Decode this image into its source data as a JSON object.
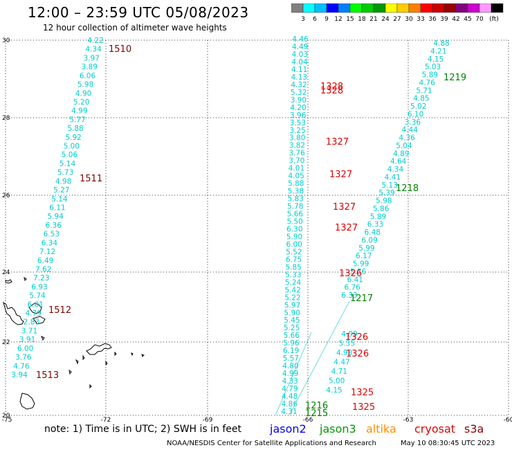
{
  "title": "12:00 – 23:59 UTC 05/08/2023",
  "subtitle": "12 hour collection of altimeter wave heights",
  "colorbar": {
    "colors": [
      "#808080",
      "#00ffff",
      "#00bfff",
      "#0000ff",
      "#0080ff",
      "#00ff00",
      "#00cc00",
      "#009900",
      "#ffff00",
      "#ffcc00",
      "#ff8000",
      "#ff0000",
      "#cc0000",
      "#990000",
      "#800080",
      "#cc00cc",
      "#ff99ff",
      "#000000"
    ],
    "labels": [
      "3",
      "6",
      "9",
      "12",
      "15",
      "18",
      "21",
      "24",
      "27",
      "30",
      "33",
      "36",
      "39",
      "42",
      "45",
      "70",
      "(ft)"
    ]
  },
  "axes": {
    "lon_labels": [
      "-75",
      "-72",
      "-69",
      "-66",
      "-63",
      "-60"
    ],
    "lat_labels": [
      "30",
      "28",
      "26",
      "24",
      "22",
      "20"
    ]
  },
  "tracks": {
    "west_values": [
      "4.22",
      "4.34",
      "3.97",
      "3.89",
      "6.06",
      "5.98",
      "4.90",
      "5.20",
      "4.99",
      "5.77",
      "5.88",
      "5.92",
      "5.00",
      "5.06",
      "5.14",
      "5.73",
      "4.98",
      "5.27",
      "5.14",
      "6.11",
      "5.94",
      "6.36",
      "6.53",
      "6.34",
      "7.12",
      "6.49",
      "7.62",
      "7.23",
      "6.93",
      "5.74",
      "6.01",
      "4.79",
      "2.83",
      "3.71",
      "3.91",
      "6.00",
      "3.76",
      "4.76",
      "3.94"
    ],
    "mid_values": [
      "4.46",
      "4.49",
      "4.03",
      "4.04",
      "4.11",
      "4.13",
      "4.32",
      "5.32",
      "3.90",
      "4.20",
      "3.96",
      "3.53",
      "3.25",
      "3.80",
      "3.82",
      "3.76",
      "3.70",
      "4.01",
      "4.05",
      "5.88",
      "5.38",
      "5.83",
      "5.78",
      "5.66",
      "5.50",
      "6.30",
      "5.90",
      "6.00",
      "5.52",
      "6.75",
      "5.85",
      "5.33",
      "5.24",
      "5.42",
      "5.22",
      "5.97",
      "5.90",
      "5.45",
      "5.25",
      "5.66",
      "5.96",
      "6.19",
      "5.57",
      "4.80",
      "4.99",
      "4.33",
      "4.79",
      "4.48",
      "4.86",
      "4.31",
      "4.15",
      "5.00",
      "4.71",
      "4.47",
      "4.93",
      "5.35",
      "4.99"
    ],
    "east_values": [
      "4.88",
      "4.21",
      "4.15",
      "5.03",
      "5.89",
      "4.76",
      "5.71",
      "4.85",
      "5.02",
      "6.10",
      "3.36",
      "4.44",
      "4.36",
      "5.04",
      "4.89",
      "4.64",
      "4.34",
      "4.41",
      "5.13",
      "5.39",
      "5.98",
      "5.86",
      "5.89",
      "6.33",
      "6.48",
      "6.09",
      "5.99",
      "6.17",
      "5.99",
      "5.56",
      "6.41",
      "6.76",
      "6.33"
    ]
  },
  "pass_labels": [
    {
      "text": "1510",
      "color": "#800000"
    },
    {
      "text": "1511",
      "color": "#800000"
    },
    {
      "text": "1512",
      "color": "#800000"
    },
    {
      "text": "1513",
      "color": "#800000"
    },
    {
      "text": "1328",
      "color": "#e00000"
    },
    {
      "text": "1328",
      "color": "#e00000"
    },
    {
      "text": "1327",
      "color": "#e00000"
    },
    {
      "text": "1327",
      "color": "#e00000"
    },
    {
      "text": "1327",
      "color": "#e00000"
    },
    {
      "text": "1327",
      "color": "#e00000"
    },
    {
      "text": "1326",
      "color": "#e00000"
    },
    {
      "text": "1326",
      "color": "#e00000"
    },
    {
      "text": "1326",
      "color": "#e00000"
    },
    {
      "text": "1325",
      "color": "#e00000"
    },
    {
      "text": "1325",
      "color": "#e00000"
    },
    {
      "text": "1219",
      "color": "#008000"
    },
    {
      "text": "1218",
      "color": "#008000"
    },
    {
      "text": "1217",
      "color": "#008000"
    },
    {
      "text": "1216",
      "color": "#008000"
    },
    {
      "text": "1215",
      "color": "#008000"
    }
  ],
  "note": "note:  1) Time is in UTC; 2) SWH is in feet",
  "legend": {
    "jason2": "jason2",
    "jason3": "jason3",
    "altika": "altika",
    "cryosat": "cryosat",
    "s3a": "s3a"
  },
  "credit": "NOAA/NESDIS Center for Satellite Applications and Research",
  "timestamp": "May 10 08:30:45 UTC 2023"
}
